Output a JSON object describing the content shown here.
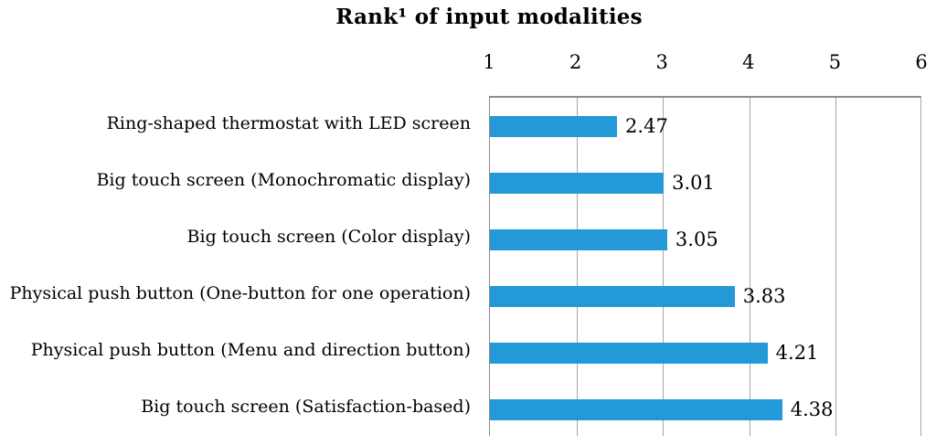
{
  "title": "Rank¹ of input modalities",
  "chart_data": {
    "type": "bar",
    "orientation": "horizontal",
    "title": "Rank¹ of input modalities",
    "categories": [
      "Ring-shaped thermostat with LED screen",
      "Big touch screen (Monochromatic display)",
      "Big touch screen (Color display)",
      "Physical push button (One-button for one operation)",
      "Physical push button (Menu and direction button)",
      "Big touch screen (Satisfaction-based)"
    ],
    "values": [
      2.47,
      3.01,
      3.05,
      3.83,
      4.21,
      4.38
    ],
    "value_labels": [
      "2.47",
      "3.01",
      "3.05",
      "3.83",
      "4.21",
      "4.38"
    ],
    "xlim": [
      1,
      6
    ],
    "xticks": [
      1,
      2,
      3,
      4,
      5,
      6
    ],
    "axis_position": "top",
    "grid": true,
    "legend": "none",
    "bar_color": "#2399d8",
    "gridline_color": "#a6a6a6",
    "axis_color": "#8c8c8c",
    "text_color": "#000000"
  }
}
